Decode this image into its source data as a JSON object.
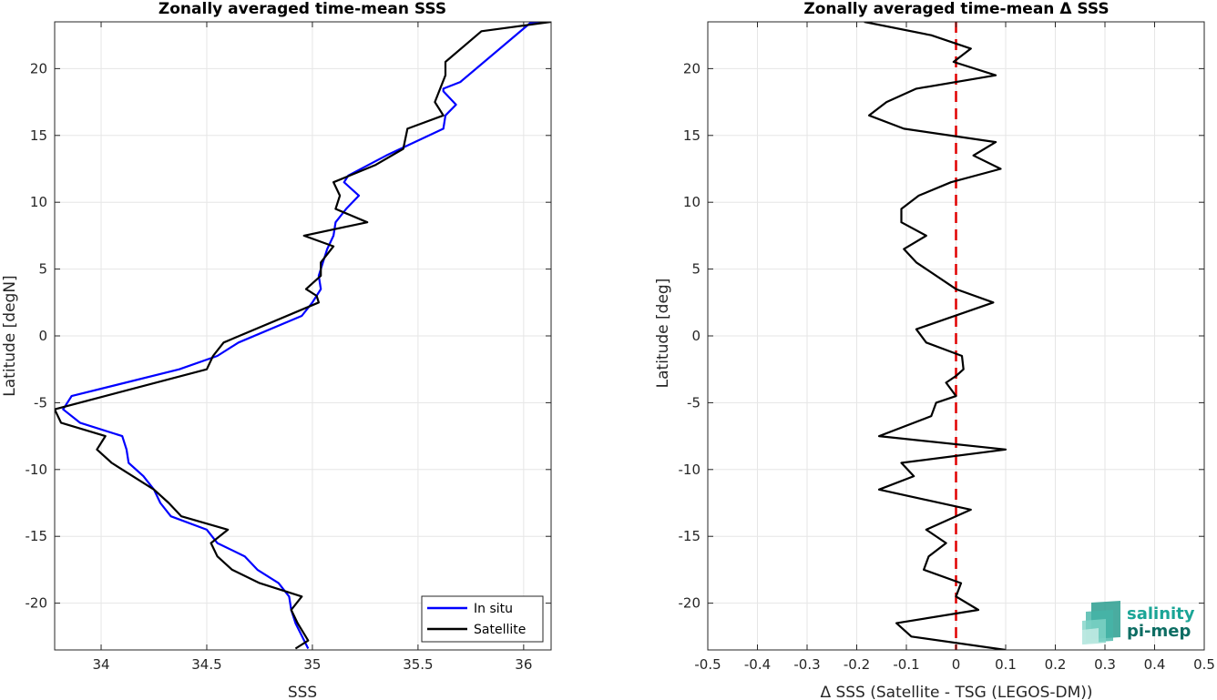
{
  "chart_data": [
    {
      "type": "line",
      "title": "Zonally averaged time-mean SSS",
      "xlabel": "SSS",
      "ylabel": "Latitude [degN]",
      "xlim": [
        33.78,
        36.13
      ],
      "ylim": [
        -23.5,
        23.5
      ],
      "x_ticks": [
        34,
        34.5,
        35,
        35.5,
        36
      ],
      "x_tick_labels": [
        "34",
        "34.5",
        "35",
        "35.5",
        "36"
      ],
      "y_ticks": [
        -20,
        -15,
        -10,
        -5,
        0,
        5,
        10,
        15,
        20
      ],
      "y_tick_labels": [
        "-20",
        "-15",
        "-10",
        "-5",
        "0",
        "5",
        "10",
        "15",
        "20"
      ],
      "grid": true,
      "legend": {
        "position": "bottom-right",
        "entries": [
          "In situ",
          "Satellite"
        ]
      },
      "series": [
        {
          "name": "In situ",
          "color": "#0000ff",
          "points": [
            [
              36.1,
              23.5
            ],
            [
              36.03,
              23.4
            ],
            [
              35.7,
              19
            ],
            [
              35.62,
              18.5
            ],
            [
              35.62,
              18.3
            ],
            [
              35.68,
              17.3
            ],
            [
              35.63,
              16.5
            ],
            [
              35.62,
              15.5
            ],
            [
              35.35,
              13.5
            ],
            [
              35.17,
              12
            ],
            [
              35.15,
              11.5
            ],
            [
              35.22,
              10.5
            ],
            [
              35.16,
              9.5
            ],
            [
              35.11,
              8.5
            ],
            [
              35.1,
              7.5
            ],
            [
              35.07,
              6.5
            ],
            [
              35.05,
              5.5
            ],
            [
              35.03,
              4.5
            ],
            [
              35.04,
              3.5
            ],
            [
              35.0,
              2.5
            ],
            [
              34.95,
              1.5
            ],
            [
              34.65,
              -0.5
            ],
            [
              34.55,
              -1.5
            ],
            [
              34.37,
              -2.5
            ],
            [
              33.86,
              -4.5
            ],
            [
              33.82,
              -5.5
            ],
            [
              33.9,
              -6.5
            ],
            [
              34.1,
              -7.5
            ],
            [
              34.12,
              -8.5
            ],
            [
              34.13,
              -9.5
            ],
            [
              34.2,
              -10.5
            ],
            [
              34.25,
              -11.5
            ],
            [
              34.28,
              -12.5
            ],
            [
              34.33,
              -13.5
            ],
            [
              34.5,
              -14.5
            ],
            [
              34.55,
              -15.5
            ],
            [
              34.68,
              -16.5
            ],
            [
              34.74,
              -17.5
            ],
            [
              34.84,
              -18.5
            ],
            [
              34.89,
              -19.5
            ],
            [
              34.9,
              -20.5
            ],
            [
              34.92,
              -21.5
            ],
            [
              34.98,
              -23.4
            ]
          ]
        },
        {
          "name": "Satellite",
          "color": "#000000",
          "points": [
            [
              36.13,
              23.5
            ],
            [
              35.8,
              22.8
            ],
            [
              35.63,
              20.5
            ],
            [
              35.63,
              19.5
            ],
            [
              35.58,
              17.5
            ],
            [
              35.62,
              16.5
            ],
            [
              35.45,
              15.5
            ],
            [
              35.43,
              14
            ],
            [
              35.3,
              12.8
            ],
            [
              35.1,
              11.5
            ],
            [
              35.13,
              10.5
            ],
            [
              35.11,
              9.5
            ],
            [
              35.26,
              8.5
            ],
            [
              34.96,
              7.5
            ],
            [
              35.1,
              6.7
            ],
            [
              35.04,
              5.5
            ],
            [
              35.04,
              4.5
            ],
            [
              34.97,
              3.5
            ],
            [
              35.02,
              3
            ],
            [
              35.03,
              2.5
            ],
            [
              34.58,
              -0.5
            ],
            [
              34.53,
              -1.5
            ],
            [
              34.5,
              -2.5
            ],
            [
              33.78,
              -5.5
            ],
            [
              33.81,
              -6.5
            ],
            [
              34.02,
              -7.5
            ],
            [
              33.98,
              -8.5
            ],
            [
              34.05,
              -9.5
            ],
            [
              34.25,
              -11.5
            ],
            [
              34.32,
              -12.5
            ],
            [
              34.38,
              -13.5
            ],
            [
              34.6,
              -14.5
            ],
            [
              34.52,
              -15.5
            ],
            [
              34.55,
              -16.5
            ],
            [
              34.62,
              -17.5
            ],
            [
              34.75,
              -18.5
            ],
            [
              34.95,
              -19.5
            ],
            [
              34.9,
              -20.5
            ],
            [
              34.93,
              -21.5
            ],
            [
              34.98,
              -22.8
            ],
            [
              34.92,
              -23.4
            ]
          ]
        }
      ]
    },
    {
      "type": "line",
      "title": "Zonally averaged time-mean Δ SSS",
      "xlabel": "Δ SSS (Satellite - TSG (LEGOS-DM))",
      "ylabel": "Latitude [deg]",
      "xlim": [
        -0.5,
        0.5
      ],
      "ylim": [
        -23.5,
        23.5
      ],
      "x_ticks": [
        -0.5,
        -0.4,
        -0.3,
        -0.2,
        -0.1,
        0,
        0.1,
        0.2,
        0.3,
        0.4,
        0.5
      ],
      "x_tick_labels": [
        "-0.5",
        "-0.4",
        "-0.3",
        "-0.2",
        "-0.1",
        "0",
        "0.1",
        "0.2",
        "0.3",
        "0.4",
        "0.5"
      ],
      "y_ticks": [
        -20,
        -15,
        -10,
        -5,
        0,
        5,
        10,
        15,
        20
      ],
      "y_tick_labels": [
        "-20",
        "-15",
        "-10",
        "-5",
        "0",
        "5",
        "10",
        "15",
        "20"
      ],
      "grid": true,
      "reference_line": {
        "x": 0,
        "color": "#e00000",
        "style": "dashed"
      },
      "series": [
        {
          "color": "#000000",
          "points": [
            [
              0.1,
              -23.5
            ],
            [
              -0.09,
              -22.5
            ],
            [
              -0.12,
              -21.5
            ],
            [
              0.045,
              -20.5
            ],
            [
              0.0,
              -19.5
            ],
            [
              0.01,
              -18.5
            ],
            [
              -0.065,
              -17.5
            ],
            [
              -0.055,
              -16.5
            ],
            [
              -0.02,
              -15.5
            ],
            [
              -0.06,
              -14.5
            ],
            [
              0.03,
              -13
            ],
            [
              -0.155,
              -11.5
            ],
            [
              -0.085,
              -10.5
            ],
            [
              -0.11,
              -9.5
            ],
            [
              0.1,
              -8.5
            ],
            [
              -0.155,
              -7.5
            ],
            [
              -0.05,
              -6
            ],
            [
              -0.04,
              -5
            ],
            [
              0.0,
              -4.5
            ],
            [
              -0.02,
              -3.5
            ],
            [
              0.0,
              -3
            ],
            [
              0.015,
              -2.5
            ],
            [
              0.012,
              -1.5
            ],
            [
              -0.06,
              -0.5
            ],
            [
              -0.08,
              0.5
            ],
            [
              0.075,
              2.5
            ],
            [
              0.0,
              3.5
            ],
            [
              -0.08,
              5.5
            ],
            [
              -0.105,
              6.5
            ],
            [
              -0.06,
              7.5
            ],
            [
              -0.11,
              8.5
            ],
            [
              -0.11,
              9.5
            ],
            [
              -0.075,
              10.5
            ],
            [
              -0.01,
              11.5
            ],
            [
              0.09,
              12.5
            ],
            [
              0.035,
              13.5
            ],
            [
              0.08,
              14.5
            ],
            [
              -0.105,
              15.5
            ],
            [
              -0.175,
              16.5
            ],
            [
              -0.14,
              17.5
            ],
            [
              -0.08,
              18.5
            ],
            [
              0.08,
              19.5
            ],
            [
              -0.005,
              20.5
            ],
            [
              0.03,
              21.5
            ],
            [
              -0.05,
              22.5
            ],
            [
              -0.185,
              23.5
            ]
          ]
        }
      ]
    }
  ],
  "logo": {
    "line1": "salinity",
    "line2": "pi-mep",
    "color1": "#1aa596",
    "color2": "#0d6d63"
  }
}
